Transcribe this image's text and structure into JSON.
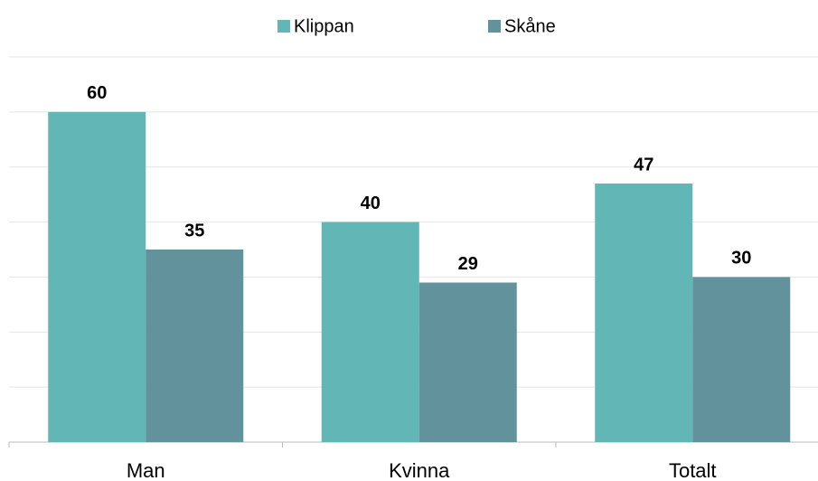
{
  "chart_data": {
    "type": "bar",
    "categories": [
      "Man",
      "Kvinna",
      "Totalt"
    ],
    "series": [
      {
        "name": "Klippan",
        "color": "#62b6b5",
        "values": [
          60,
          40,
          47
        ]
      },
      {
        "name": "Skåne",
        "color": "#62929c",
        "values": [
          35,
          29,
          30
        ]
      }
    ],
    "ylim": [
      0,
      70
    ],
    "yticks": [
      0,
      10,
      20,
      30,
      40,
      50,
      60,
      70
    ],
    "grid": true,
    "legend": "top"
  }
}
